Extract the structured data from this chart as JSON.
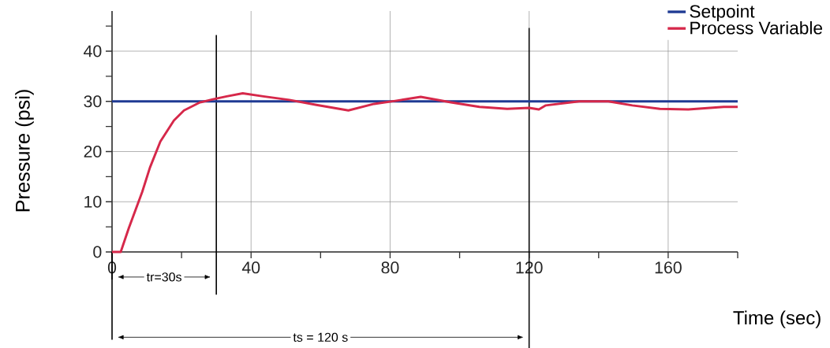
{
  "chart_data": {
    "type": "line",
    "xlabel": "Time (sec)",
    "ylabel": "Pressure (psi)",
    "xlim": [
      0,
      180
    ],
    "ylim": [
      0,
      48
    ],
    "xticks": [
      0,
      {
        "value": 20,
        "label": null
      },
      40,
      {
        "value": 60,
        "label": null
      },
      80,
      {
        "value": 100,
        "label": null
      },
      120,
      {
        "value": 140,
        "label": null
      },
      160,
      {
        "value": 180,
        "label": null
      }
    ],
    "yticks": [
      0,
      {
        "value": 5,
        "label": null
      },
      10,
      {
        "value": 15,
        "label": null
      },
      20,
      {
        "value": 25,
        "label": null
      },
      30,
      {
        "value": 35,
        "label": null
      },
      40,
      {
        "value": 45,
        "label": null
      }
    ],
    "grid": true,
    "legend": "top right",
    "series": [
      {
        "name": "Setpoint",
        "color": "#1f3a93",
        "x": [
          0,
          180
        ],
        "values": [
          30,
          30
        ]
      },
      {
        "name": "Process Variable",
        "color": "#d6284a",
        "x": [
          0,
          2.5,
          4.8,
          8.7,
          10.9,
          13.9,
          17.8,
          20.7,
          25.3,
          29,
          33,
          37.6,
          43.5,
          51,
          58.8,
          68,
          75.4,
          81.5,
          88.8,
          97.5,
          105.7,
          113.7,
          120,
          122.8,
          124.8,
          134.4,
          142.8,
          149.7,
          157.6,
          165.8,
          176,
          180
        ],
        "values": [
          0,
          0,
          4.7,
          12,
          16.8,
          22,
          26.2,
          28.2,
          29.8,
          30.4,
          31,
          31.6,
          31,
          30.3,
          29.3,
          28.2,
          29.5,
          30.1,
          30.9,
          29.8,
          28.9,
          28.5,
          28.7,
          28.4,
          29.2,
          30,
          30,
          29.2,
          28.5,
          28.4,
          28.9,
          28.9
        ]
      }
    ],
    "ref_lines": [
      {
        "axis": "x",
        "value": 30
      },
      {
        "axis": "x",
        "value": 120
      }
    ],
    "annotations": [
      "tr=30s",
      "ts = 120 s"
    ]
  }
}
